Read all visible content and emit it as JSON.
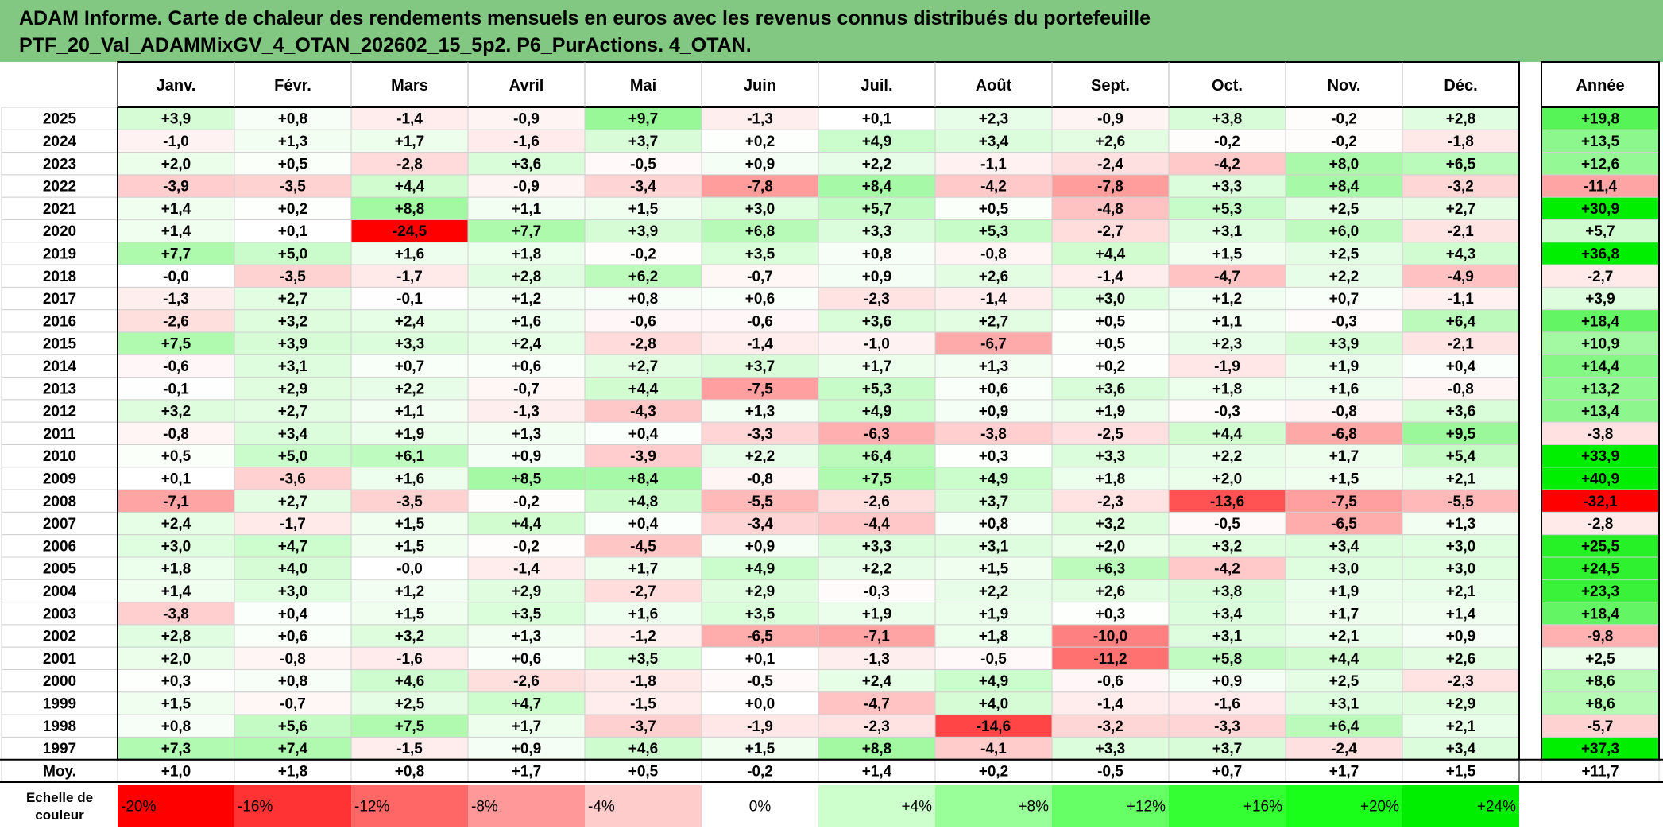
{
  "title": {
    "line1": "ADAM Informe. Carte de chaleur des rendements mensuels en euros avec les revenus connus distribués du portefeuille",
    "line2": "PTF_20_Val_ADAMMixGV_4_OTAN_202602_15_5p2. P6_PurActions. 4_OTAN."
  },
  "chart_data": {
    "type": "heatmap",
    "columns": [
      "Janv.",
      "Févr.",
      "Mars",
      "Avril",
      "Mai",
      "Juin",
      "Juil.",
      "Août",
      "Sept.",
      "Oct.",
      "Nov.",
      "Déc."
    ],
    "year_column_label": "Année",
    "rows": [
      {
        "label": "2025",
        "values": [
          "+3,9",
          "+0,8",
          "-1,4",
          "-0,9",
          "+9,7",
          "-1,3",
          "+0,1",
          "+2,3",
          "-0,9",
          "+3,8",
          "-0,2",
          "+2,8"
        ],
        "year": "+19,8"
      },
      {
        "label": "2024",
        "values": [
          "-1,0",
          "+1,3",
          "+1,7",
          "-1,6",
          "+3,7",
          "+0,2",
          "+4,9",
          "+3,4",
          "+2,6",
          "-0,2",
          "-0,2",
          "-1,8"
        ],
        "year": "+13,5"
      },
      {
        "label": "2023",
        "values": [
          "+2,0",
          "+0,5",
          "-2,8",
          "+3,6",
          "-0,5",
          "+0,9",
          "+2,2",
          "-1,1",
          "-2,4",
          "-4,2",
          "+8,0",
          "+6,5"
        ],
        "year": "+12,6"
      },
      {
        "label": "2022",
        "values": [
          "-3,9",
          "-3,5",
          "+4,4",
          "-0,9",
          "-3,4",
          "-7,8",
          "+8,4",
          "-4,2",
          "-7,8",
          "+3,3",
          "+8,4",
          "-3,2"
        ],
        "year": "-11,4"
      },
      {
        "label": "2021",
        "values": [
          "+1,4",
          "+0,2",
          "+8,8",
          "+1,1",
          "+1,5",
          "+3,0",
          "+5,7",
          "+0,5",
          "-4,8",
          "+5,3",
          "+2,5",
          "+2,7"
        ],
        "year": "+30,9"
      },
      {
        "label": "2020",
        "values": [
          "+1,4",
          "+0,1",
          "-24,5",
          "+7,7",
          "+3,9",
          "+6,8",
          "+3,3",
          "+5,3",
          "-2,7",
          "+3,1",
          "+6,0",
          "-2,1"
        ],
        "year": "+5,7"
      },
      {
        "label": "2019",
        "values": [
          "+7,7",
          "+5,0",
          "+1,6",
          "+1,8",
          "-0,2",
          "+3,5",
          "+0,8",
          "-0,8",
          "+4,4",
          "+1,5",
          "+2,5",
          "+4,3"
        ],
        "year": "+36,8"
      },
      {
        "label": "2018",
        "values": [
          "-0,0",
          "-3,5",
          "-1,7",
          "+2,8",
          "+6,2",
          "-0,7",
          "+0,9",
          "+2,6",
          "-1,4",
          "-4,7",
          "+2,2",
          "-4,9"
        ],
        "year": "-2,7"
      },
      {
        "label": "2017",
        "values": [
          "-1,3",
          "+2,7",
          "-0,1",
          "+1,2",
          "+0,8",
          "+0,6",
          "-2,3",
          "-1,4",
          "+3,0",
          "+1,2",
          "+0,7",
          "-1,1"
        ],
        "year": "+3,9"
      },
      {
        "label": "2016",
        "values": [
          "-2,6",
          "+3,2",
          "+2,4",
          "+1,6",
          "-0,6",
          "-0,6",
          "+3,6",
          "+2,7",
          "+0,5",
          "+1,1",
          "-0,3",
          "+6,4"
        ],
        "year": "+18,4"
      },
      {
        "label": "2015",
        "values": [
          "+7,5",
          "+3,9",
          "+3,3",
          "+2,4",
          "-2,8",
          "-1,4",
          "-1,0",
          "-6,7",
          "+0,5",
          "+2,3",
          "+3,9",
          "-2,1"
        ],
        "year": "+10,9"
      },
      {
        "label": "2014",
        "values": [
          "-0,6",
          "+3,1",
          "+0,7",
          "+0,6",
          "+2,7",
          "+3,7",
          "+1,7",
          "+1,3",
          "+0,2",
          "-1,9",
          "+1,9",
          "+0,4"
        ],
        "year": "+14,4"
      },
      {
        "label": "2013",
        "values": [
          "-0,1",
          "+2,9",
          "+2,2",
          "-0,7",
          "+4,4",
          "-7,5",
          "+5,3",
          "+0,6",
          "+3,6",
          "+1,8",
          "+1,6",
          "-0,8"
        ],
        "year": "+13,2"
      },
      {
        "label": "2012",
        "values": [
          "+3,2",
          "+2,7",
          "+1,1",
          "-1,3",
          "-4,3",
          "+1,3",
          "+4,9",
          "+0,9",
          "+1,9",
          "-0,3",
          "-0,8",
          "+3,6"
        ],
        "year": "+13,4"
      },
      {
        "label": "2011",
        "values": [
          "-0,8",
          "+3,4",
          "+1,9",
          "+1,3",
          "+0,4",
          "-3,3",
          "-6,3",
          "-3,8",
          "-2,5",
          "+4,4",
          "-6,8",
          "+9,5"
        ],
        "year": "-3,8"
      },
      {
        "label": "2010",
        "values": [
          "+0,5",
          "+5,0",
          "+6,1",
          "+0,9",
          "-3,9",
          "+2,2",
          "+6,4",
          "+0,3",
          "+3,3",
          "+2,2",
          "+1,7",
          "+5,4"
        ],
        "year": "+33,9"
      },
      {
        "label": "2009",
        "values": [
          "+0,1",
          "-3,6",
          "+1,6",
          "+8,5",
          "+8,4",
          "-0,8",
          "+7,5",
          "+4,9",
          "+1,8",
          "+2,0",
          "+1,5",
          "+2,1"
        ],
        "year": "+40,9"
      },
      {
        "label": "2008",
        "values": [
          "-7,1",
          "+2,7",
          "-3,5",
          "-0,2",
          "+4,8",
          "-5,5",
          "-2,6",
          "+3,7",
          "-2,3",
          "-13,6",
          "-7,5",
          "-5,5"
        ],
        "year": "-32,1"
      },
      {
        "label": "2007",
        "values": [
          "+2,4",
          "-1,7",
          "+1,5",
          "+4,4",
          "+0,4",
          "-3,4",
          "-4,4",
          "+0,8",
          "+3,2",
          "-0,5",
          "-6,5",
          "+1,3"
        ],
        "year": "-2,8"
      },
      {
        "label": "2006",
        "values": [
          "+3,0",
          "+4,7",
          "+1,5",
          "-0,2",
          "-4,5",
          "+0,9",
          "+3,3",
          "+3,1",
          "+2,0",
          "+3,2",
          "+3,4",
          "+3,0"
        ],
        "year": "+25,5"
      },
      {
        "label": "2005",
        "values": [
          "+1,8",
          "+4,0",
          "-0,0",
          "-1,4",
          "+1,7",
          "+4,9",
          "+2,2",
          "+1,5",
          "+6,3",
          "-4,2",
          "+3,0",
          "+3,0"
        ],
        "year": "+24,5"
      },
      {
        "label": "2004",
        "values": [
          "+1,4",
          "+3,0",
          "+1,2",
          "+2,9",
          "-2,7",
          "+2,9",
          "-0,3",
          "+2,2",
          "+2,6",
          "+3,8",
          "+1,9",
          "+2,1"
        ],
        "year": "+23,3"
      },
      {
        "label": "2003",
        "values": [
          "-3,8",
          "+0,4",
          "+1,5",
          "+3,5",
          "+1,6",
          "+3,5",
          "+1,9",
          "+1,9",
          "+0,3",
          "+3,4",
          "+1,7",
          "+1,4"
        ],
        "year": "+18,4"
      },
      {
        "label": "2002",
        "values": [
          "+2,8",
          "+0,6",
          "+3,2",
          "+1,3",
          "-1,2",
          "-6,5",
          "-7,1",
          "+1,8",
          "-10,0",
          "+3,1",
          "+2,1",
          "+0,9"
        ],
        "year": "-9,8"
      },
      {
        "label": "2001",
        "values": [
          "+2,0",
          "-0,8",
          "-1,6",
          "+0,6",
          "+3,5",
          "+0,1",
          "-1,3",
          "-0,5",
          "-11,2",
          "+5,8",
          "+4,4",
          "+2,6"
        ],
        "year": "+2,5"
      },
      {
        "label": "2000",
        "values": [
          "+0,3",
          "+0,8",
          "+4,6",
          "-2,6",
          "-1,8",
          "-0,5",
          "+2,4",
          "+4,9",
          "-0,6",
          "+0,9",
          "+2,5",
          "-2,3"
        ],
        "year": "+8,6"
      },
      {
        "label": "1999",
        "values": [
          "+1,5",
          "-0,7",
          "+2,5",
          "+4,7",
          "-1,5",
          "+0,0",
          "-4,7",
          "+4,0",
          "-1,4",
          "-1,6",
          "+3,1",
          "+2,9"
        ],
        "year": "+8,6"
      },
      {
        "label": "1998",
        "values": [
          "+0,8",
          "+5,6",
          "+7,5",
          "+1,7",
          "-3,7",
          "-1,9",
          "-2,3",
          "-14,6",
          "-3,2",
          "-3,3",
          "+6,4",
          "+2,1"
        ],
        "year": "-5,7"
      },
      {
        "label": "1997",
        "values": [
          "+7,3",
          "+7,4",
          "-1,5",
          "+0,9",
          "+4,6",
          "+1,5",
          "+8,8",
          "-4,1",
          "+3,3",
          "+3,7",
          "-2,4",
          "+3,4"
        ],
        "year": "+37,3"
      }
    ],
    "average_row": {
      "label": "Moy.",
      "values": [
        "+1,0",
        "+1,8",
        "+0,8",
        "+1,7",
        "+0,5",
        "-0,2",
        "+1,4",
        "+0,2",
        "-0,5",
        "+0,7",
        "+1,7",
        "+1,5"
      ],
      "year": "+11,7"
    },
    "color_scale": {
      "title_line1": "Echelle de",
      "title_line2": "couleur",
      "steps": [
        {
          "label": "-20%",
          "value": -20,
          "color": "#ff0000"
        },
        {
          "label": "-16%",
          "value": -16,
          "color": "#ff3333"
        },
        {
          "label": "-12%",
          "value": -12,
          "color": "#ff6666"
        },
        {
          "label": "-8%",
          "value": -8,
          "color": "#ff9999"
        },
        {
          "label": "-4%",
          "value": -4,
          "color": "#ffcccc"
        },
        {
          "label": "0%",
          "value": 0,
          "color": "#ffffff"
        },
        {
          "label": "+4%",
          "value": 4,
          "color": "#ccffcc"
        },
        {
          "label": "+8%",
          "value": 8,
          "color": "#99ff99"
        },
        {
          "label": "+12%",
          "value": 12,
          "color": "#66ff66"
        },
        {
          "label": "+16%",
          "value": 16,
          "color": "#33ff33"
        },
        {
          "label": "+20%",
          "value": 20,
          "color": "#1aff1a"
        },
        {
          "label": "+24%",
          "value": 24,
          "color": "#00ee00"
        }
      ]
    }
  }
}
